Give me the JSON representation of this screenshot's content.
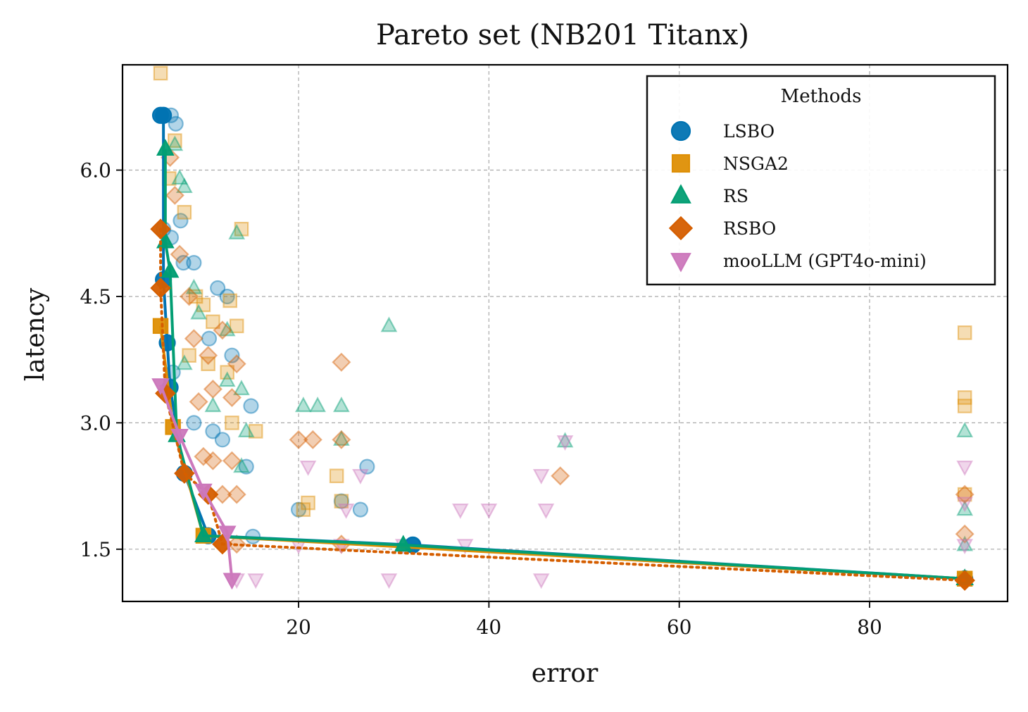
{
  "chart_data": {
    "type": "scatter",
    "title": "Pareto set (NB201 Titanx)",
    "xlabel": "error",
    "ylabel": "latency",
    "xlim": [
      1.5,
      94.5
    ],
    "ylim": [
      0.88,
      7.25
    ],
    "xticks": [
      20,
      40,
      60,
      80
    ],
    "yticks": [
      1.5,
      3.0,
      4.5,
      6.0
    ],
    "xtick_labels": [
      "20",
      "40",
      "60",
      "80"
    ],
    "ytick_labels": [
      "1.5",
      "3.0",
      "4.5",
      "6.0"
    ],
    "grid": true,
    "legend": {
      "title": "Methods",
      "placement": "top-right"
    },
    "series": [
      {
        "name": "LSBO",
        "color": "#0173b2",
        "marker": "circle",
        "pareto_front": [
          [
            5.5,
            6.65
          ],
          [
            5.8,
            6.65
          ],
          [
            5.8,
            4.7
          ],
          [
            6.2,
            3.95
          ],
          [
            6.5,
            3.42
          ],
          [
            8.0,
            2.4
          ],
          [
            10.5,
            1.66
          ],
          [
            32.0,
            1.55
          ],
          [
            90.0,
            1.15
          ]
        ],
        "points": [
          [
            6.6,
            6.65
          ],
          [
            7.1,
            6.55
          ],
          [
            5.8,
            5.3
          ],
          [
            6.6,
            5.2
          ],
          [
            7.6,
            5.4
          ],
          [
            7.9,
            4.9
          ],
          [
            9.0,
            4.9
          ],
          [
            11.5,
            4.6
          ],
          [
            12.5,
            4.5
          ],
          [
            6.2,
            3.95
          ],
          [
            6.8,
            3.6
          ],
          [
            10.6,
            4.0
          ],
          [
            13.0,
            3.8
          ],
          [
            15.0,
            3.2
          ],
          [
            9.0,
            3.0
          ],
          [
            11.0,
            2.9
          ],
          [
            12.0,
            2.8
          ],
          [
            14.5,
            2.48
          ],
          [
            15.2,
            1.65
          ],
          [
            20.0,
            1.97
          ],
          [
            24.5,
            2.07
          ],
          [
            26.5,
            1.97
          ],
          [
            27.2,
            2.48
          ],
          [
            32.0,
            1.55
          ],
          [
            90.0,
            1.15
          ]
        ]
      },
      {
        "name": "NSGA2",
        "color": "#de8f05",
        "marker": "square",
        "pareto_front": [
          [
            5.5,
            4.15
          ],
          [
            6.8,
            2.95
          ],
          [
            10.0,
            1.66
          ],
          [
            90.0,
            1.15
          ]
        ],
        "points": [
          [
            5.5,
            7.15
          ],
          [
            7.0,
            6.35
          ],
          [
            6.4,
            5.9
          ],
          [
            8.0,
            5.5
          ],
          [
            9.2,
            4.5
          ],
          [
            10.0,
            4.4
          ],
          [
            11.0,
            4.2
          ],
          [
            12.8,
            4.45
          ],
          [
            13.5,
            4.15
          ],
          [
            14.0,
            5.3
          ],
          [
            8.5,
            3.8
          ],
          [
            10.5,
            3.7
          ],
          [
            12.5,
            3.6
          ],
          [
            13.0,
            3.0
          ],
          [
            15.5,
            2.9
          ],
          [
            10.0,
            1.66
          ],
          [
            24.0,
            2.37
          ],
          [
            20.5,
            1.97
          ],
          [
            21.0,
            2.05
          ],
          [
            24.5,
            2.07
          ],
          [
            90.0,
            4.07
          ],
          [
            90.0,
            3.3
          ],
          [
            90.0,
            3.2
          ],
          [
            90.0,
            2.15
          ],
          [
            90.0,
            1.15
          ]
        ]
      },
      {
        "name": "RS",
        "color": "#029e73",
        "marker": "triangle-up",
        "pareto_front": [
          [
            6.0,
            6.25
          ],
          [
            6.0,
            5.15
          ],
          [
            6.5,
            4.8
          ],
          [
            7.2,
            2.85
          ],
          [
            10.0,
            1.66
          ],
          [
            31.0,
            1.55
          ],
          [
            90.0,
            1.15
          ]
        ],
        "points": [
          [
            7.0,
            6.3
          ],
          [
            7.5,
            5.9
          ],
          [
            8.0,
            5.8
          ],
          [
            6.5,
            4.8
          ],
          [
            9.0,
            4.6
          ],
          [
            9.5,
            4.3
          ],
          [
            12.5,
            4.1
          ],
          [
            8.0,
            3.7
          ],
          [
            11.0,
            3.2
          ],
          [
            12.5,
            3.5
          ],
          [
            14.0,
            3.4
          ],
          [
            13.5,
            5.25
          ],
          [
            29.5,
            4.15
          ],
          [
            20.5,
            3.2
          ],
          [
            22.0,
            3.2
          ],
          [
            24.5,
            3.2
          ],
          [
            24.5,
            2.8
          ],
          [
            14.5,
            2.9
          ],
          [
            14.0,
            2.48
          ],
          [
            48.0,
            2.78
          ],
          [
            10.0,
            1.66
          ],
          [
            31.0,
            1.55
          ],
          [
            90.0,
            2.9
          ],
          [
            90.0,
            1.97
          ],
          [
            90.0,
            1.55
          ],
          [
            90.0,
            1.15
          ]
        ]
      },
      {
        "name": "RSBO",
        "color": "#d55e00",
        "marker": "diamond",
        "pareto_front": [
          [
            5.5,
            5.3
          ],
          [
            5.5,
            4.6
          ],
          [
            6.0,
            3.35
          ],
          [
            8.0,
            2.4
          ],
          [
            10.5,
            2.15
          ],
          [
            12.0,
            1.56
          ],
          [
            90.0,
            1.13
          ]
        ],
        "points": [
          [
            6.5,
            6.15
          ],
          [
            7.0,
            5.7
          ],
          [
            7.5,
            5.0
          ],
          [
            8.5,
            4.5
          ],
          [
            9.0,
            4.0
          ],
          [
            10.5,
            3.8
          ],
          [
            12.0,
            4.1
          ],
          [
            13.5,
            3.7
          ],
          [
            9.5,
            3.25
          ],
          [
            11.0,
            3.4
          ],
          [
            13.0,
            3.3
          ],
          [
            10.0,
            2.6
          ],
          [
            11.0,
            2.55
          ],
          [
            13.0,
            2.55
          ],
          [
            12.0,
            2.15
          ],
          [
            13.5,
            2.15
          ],
          [
            12.0,
            1.56
          ],
          [
            13.5,
            1.56
          ],
          [
            24.5,
            3.72
          ],
          [
            20.0,
            2.8
          ],
          [
            21.5,
            2.8
          ],
          [
            24.5,
            2.8
          ],
          [
            24.5,
            1.56
          ],
          [
            47.5,
            2.37
          ],
          [
            90.0,
            2.15
          ],
          [
            90.0,
            1.68
          ],
          [
            90.0,
            1.13
          ]
        ]
      },
      {
        "name": "mooLLM (GPT4o-mini)",
        "color": "#cc78bc",
        "marker": "triangle-down",
        "pareto_front": [
          [
            5.5,
            3.45
          ],
          [
            7.5,
            2.85
          ],
          [
            10.0,
            2.2
          ],
          [
            12.5,
            1.7
          ],
          [
            13.0,
            1.14
          ]
        ],
        "points": [
          [
            12.5,
            1.7
          ],
          [
            13.5,
            1.14
          ],
          [
            15.5,
            1.14
          ],
          [
            20.0,
            1.55
          ],
          [
            21.0,
            2.48
          ],
          [
            24.5,
            1.55
          ],
          [
            25.0,
            1.97
          ],
          [
            26.5,
            2.38
          ],
          [
            29.5,
            1.14
          ],
          [
            31.0,
            1.55
          ],
          [
            37.0,
            1.97
          ],
          [
            37.5,
            1.55
          ],
          [
            40.0,
            1.97
          ],
          [
            45.5,
            2.38
          ],
          [
            45.5,
            1.14
          ],
          [
            46.0,
            1.97
          ],
          [
            48.0,
            2.78
          ],
          [
            90.0,
            2.48
          ],
          [
            90.0,
            2.05
          ],
          [
            90.0,
            1.55
          ],
          [
            90.0,
            1.14
          ]
        ]
      }
    ]
  }
}
